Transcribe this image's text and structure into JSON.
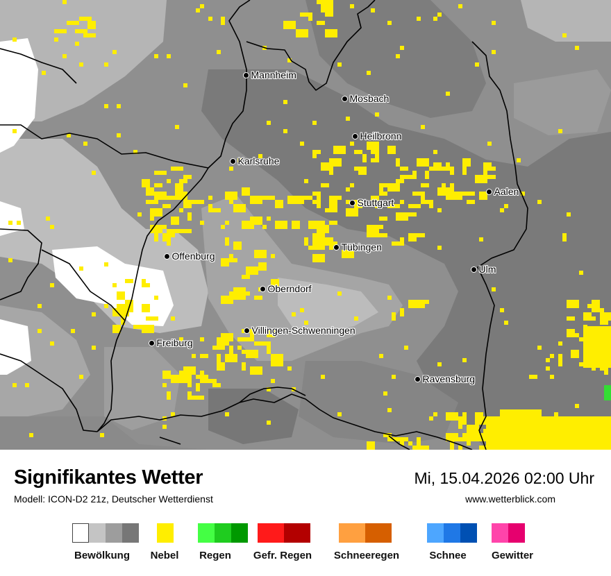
{
  "map": {
    "cities": [
      {
        "name": "Mannheim"
      },
      {
        "name": "Mosbach"
      },
      {
        "name": "Heilbronn"
      },
      {
        "name": "Karlsruhe"
      },
      {
        "name": "Stuttgart"
      },
      {
        "name": "Aalen"
      },
      {
        "name": "Tübingen"
      },
      {
        "name": "Offenburg"
      },
      {
        "name": "Ulm"
      },
      {
        "name": "Oberndorf"
      },
      {
        "name": "Villingen-Schwenningen"
      },
      {
        "name": "Freiburg"
      },
      {
        "name": "Ravensburg"
      }
    ]
  },
  "footer": {
    "title": "Signifikantes Wetter",
    "model": "Modell: ICON-D2 21z, Deutscher Wetterdienst",
    "datetime": "Mi, 15.04.2026 02:00 Uhr",
    "website": "www.wetterblick.com"
  },
  "legend": [
    {
      "label": "Bewölkung",
      "colors": [
        "#ffffff",
        "#c4c4c4",
        "#9d9d9d",
        "#777777"
      ]
    },
    {
      "label": "Nebel",
      "colors": [
        "#ffee00"
      ]
    },
    {
      "label": "Regen",
      "colors": [
        "#44ff44",
        "#1fcc1f",
        "#009900"
      ]
    },
    {
      "label": "Gefr. Regen",
      "colors": [
        "#ff1a1a",
        "#b30000"
      ]
    },
    {
      "label": "Schneeregen",
      "colors": [
        "#ffa040",
        "#d65f00"
      ]
    },
    {
      "label": "Schnee",
      "colors": [
        "#4da6ff",
        "#1f78e6",
        "#0050b3"
      ]
    },
    {
      "label": "Gewitter",
      "colors": [
        "#ff44aa",
        "#e6006e"
      ]
    }
  ]
}
